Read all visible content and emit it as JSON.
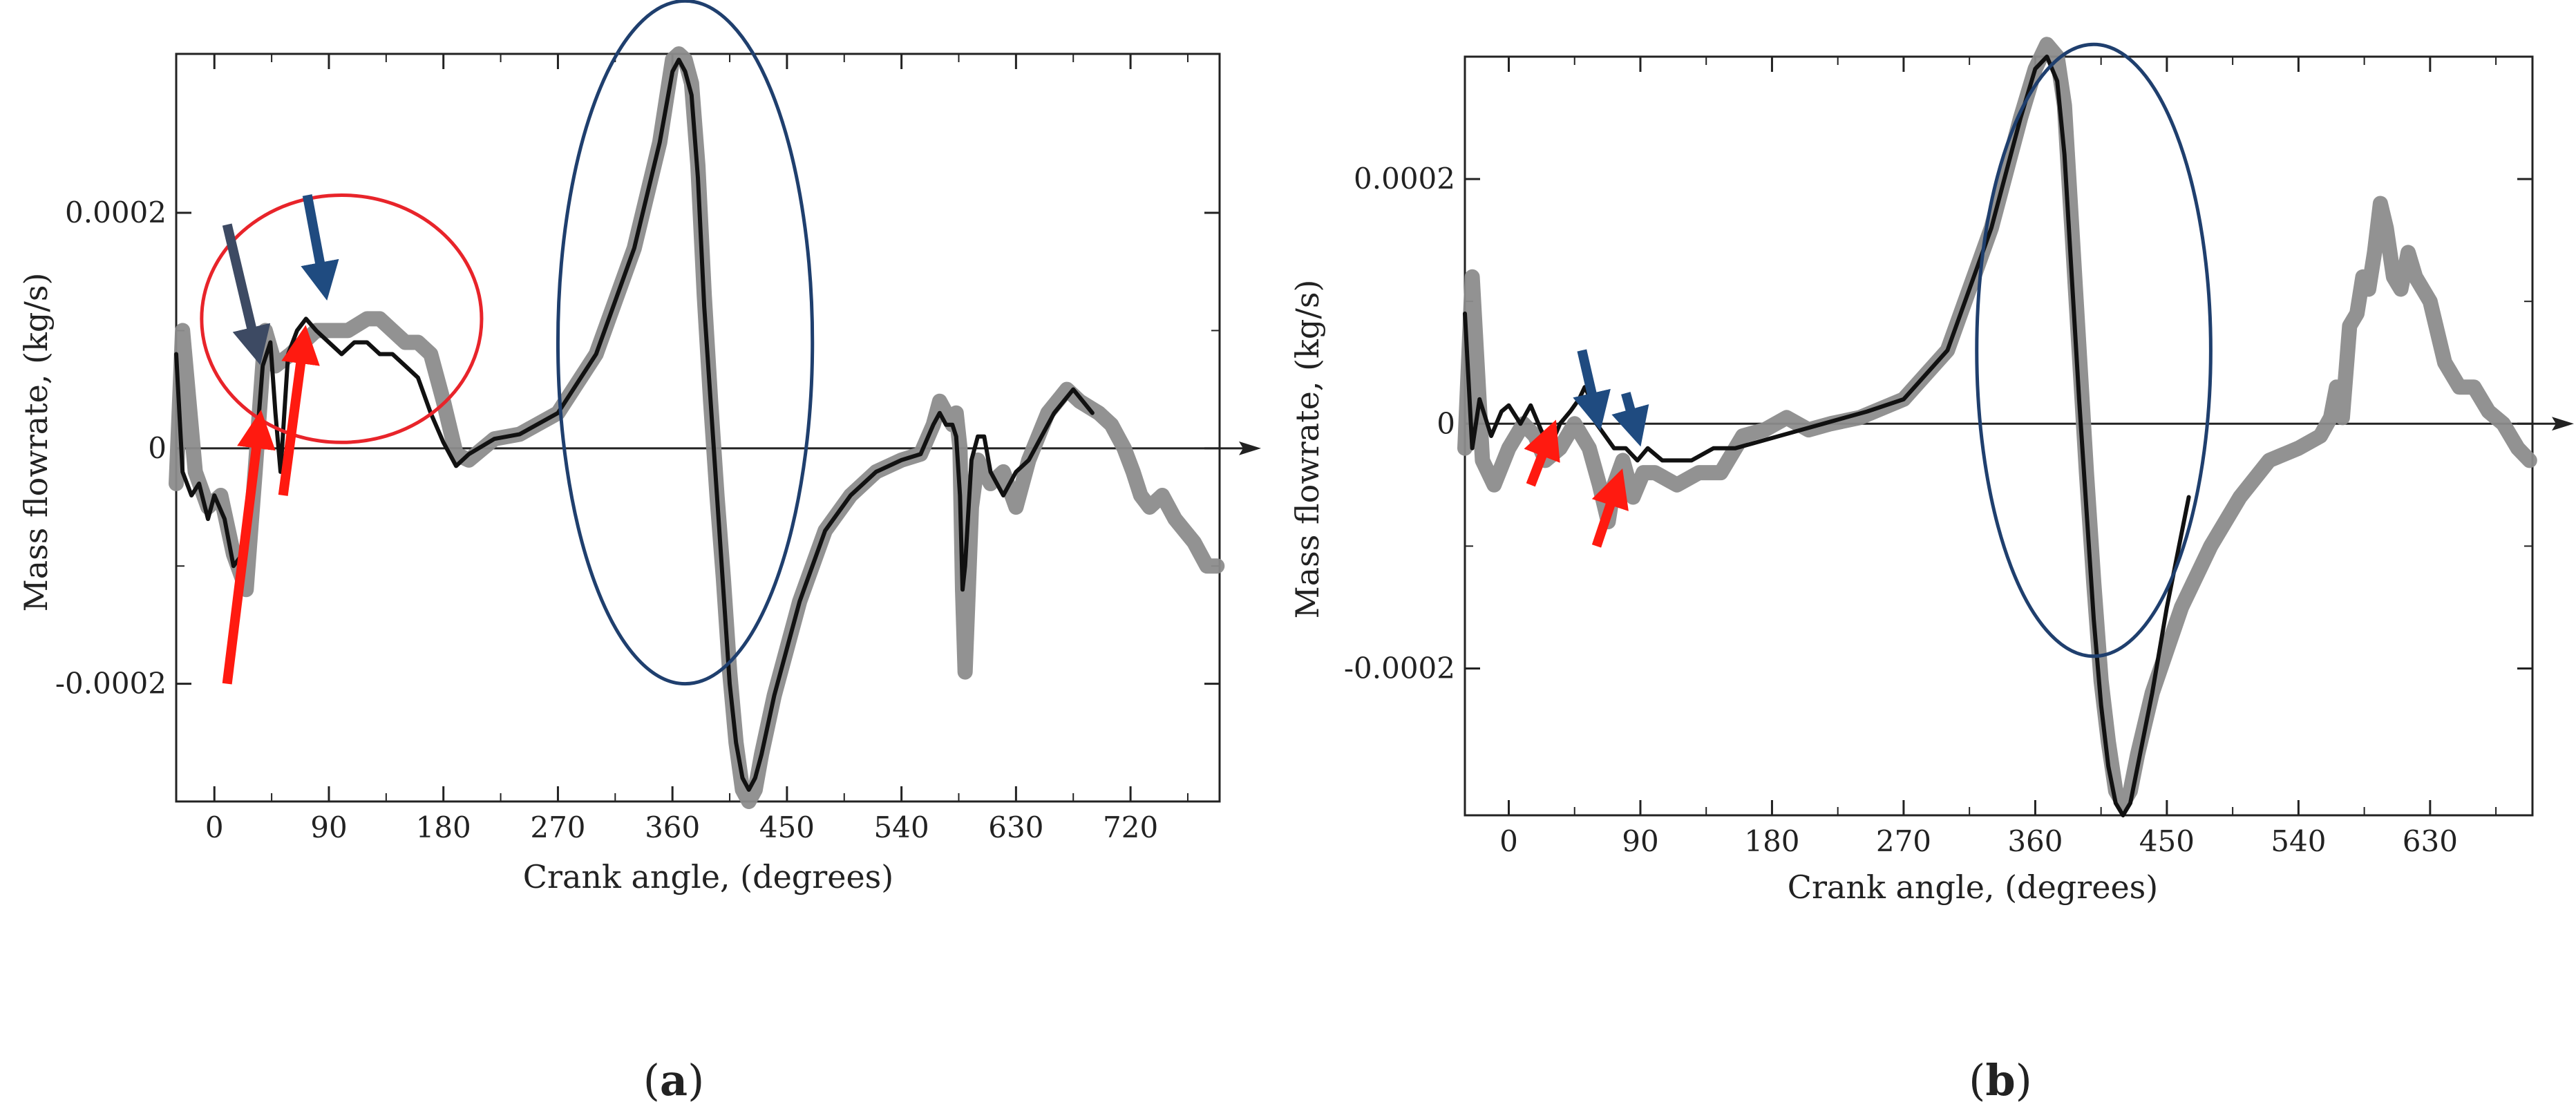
{
  "figure": {
    "panel_labels": [
      {
        "open": "(",
        "letter": "a",
        "close": ")"
      },
      {
        "open": "(",
        "letter": "b",
        "close": ")"
      }
    ]
  },
  "colors": {
    "series_gray": "#8c8c8c",
    "series_black": "#111111",
    "highlight_red": "#e8242a",
    "highlight_blue": "#1f3f6e",
    "arrow_red": "#ff1a10",
    "arrow_blue": "#1f4b80",
    "arrow_slate": "#3d4a63",
    "axes": "#222222"
  },
  "chart_data": [
    {
      "type": "line",
      "panel": "a",
      "title": "",
      "xlabel": "Crank angle, (degrees)",
      "ylabel": "Mass flowrate, (kg/s)",
      "xlim": [
        -30,
        790
      ],
      "ylim": [
        -0.0003,
        0.000335
      ],
      "xticks": [
        0,
        90,
        180,
        270,
        360,
        450,
        540,
        630,
        720
      ],
      "xtick_labels": [
        "0",
        "90",
        "180",
        "270",
        "360",
        "450",
        "540",
        "630",
        "720"
      ],
      "yticks": [
        0.0002,
        0,
        -0.0002
      ],
      "ytick_labels": [
        "0.0002",
        "0",
        "-0.0002"
      ],
      "zero_line": true,
      "series": [
        {
          "name": "gray (thick)",
          "color_key": "series_gray",
          "x": [
            -30,
            -25,
            -15,
            -5,
            5,
            15,
            25,
            32,
            40,
            48,
            60,
            70,
            80,
            90,
            105,
            120,
            130,
            140,
            150,
            160,
            170,
            180,
            190,
            200,
            220,
            240,
            270,
            300,
            330,
            350,
            360,
            365,
            370,
            375,
            380,
            385,
            390,
            395,
            400,
            405,
            410,
            415,
            420,
            425,
            430,
            440,
            460,
            480,
            500,
            520,
            540,
            555,
            565,
            570,
            575,
            580,
            583,
            586,
            588,
            590,
            595,
            600,
            610,
            620,
            630,
            640,
            655,
            670,
            680,
            695,
            705,
            710,
            715,
            722,
            728,
            735,
            745,
            755,
            770,
            780,
            788
          ],
          "y": [
            -3e-05,
            0.0001,
            -2e-05,
            -5e-05,
            -4e-05,
            -9e-05,
            -0.00012,
            -2e-05,
            0.0001,
            7e-05,
            8e-05,
            9e-05,
            0.0001,
            0.0001,
            0.0001,
            0.00011,
            0.00011,
            0.0001,
            9e-05,
            9e-05,
            8e-05,
            4e-05,
            -5e-06,
            -1e-05,
            8e-06,
            1.2e-05,
            3e-05,
            8e-05,
            0.00017,
            0.00026,
            0.00033,
            0.000335,
            0.00033,
            0.00031,
            0.00024,
            0.00013,
            4e-05,
            -4e-05,
            -0.00011,
            -0.00019,
            -0.00025,
            -0.00029,
            -0.0003,
            -0.00029,
            -0.00026,
            -0.00021,
            -0.00013,
            -7e-05,
            -4e-05,
            -2e-05,
            -1e-05,
            -5e-06,
            2e-05,
            4e-05,
            3e-05,
            2e-05,
            3e-05,
            0.0,
            -0.00012,
            -0.00019,
            -5e-05,
            -1e-05,
            -3e-05,
            -2e-05,
            -5e-05,
            -1e-05,
            3e-05,
            5e-05,
            4e-05,
            3e-05,
            2e-05,
            1e-05,
            0.0,
            -2e-05,
            -4e-05,
            -5e-05,
            -4e-05,
            -6e-05,
            -8e-05,
            -0.0001,
            -0.0001
          ]
        },
        {
          "name": "black (thin)",
          "color_key": "series_black",
          "x": [
            -30,
            -25,
            -18,
            -12,
            -5,
            0,
            8,
            15,
            22,
            30,
            38,
            44,
            48,
            52,
            58,
            65,
            72,
            80,
            90,
            100,
            110,
            120,
            130,
            140,
            150,
            160,
            170,
            180,
            190,
            200,
            220,
            240,
            270,
            300,
            330,
            350,
            360,
            365,
            370,
            375,
            380,
            385,
            390,
            395,
            400,
            405,
            410,
            415,
            420,
            425,
            430,
            440,
            460,
            480,
            500,
            520,
            540,
            555,
            565,
            570,
            575,
            580,
            583,
            586,
            588,
            590,
            595,
            600,
            605,
            610,
            620,
            630,
            640,
            660,
            675,
            690
          ],
          "y": [
            8e-05,
            -2e-05,
            -4e-05,
            -3e-05,
            -6e-05,
            -4e-05,
            -6e-05,
            -0.0001,
            -9e-05,
            -4e-05,
            7e-05,
            9e-05,
            3e-05,
            -2e-05,
            8e-05,
            0.0001,
            0.00011,
            0.0001,
            9e-05,
            8e-05,
            9e-05,
            9e-05,
            8e-05,
            8e-05,
            7e-05,
            6e-05,
            3e-05,
            5e-06,
            -1.5e-05,
            -5e-06,
            8e-06,
            1.2e-05,
            3e-05,
            8e-05,
            0.00017,
            0.00026,
            0.00032,
            0.00033,
            0.00032,
            0.0003,
            0.00023,
            0.00012,
            4e-05,
            -4e-05,
            -0.00012,
            -0.0002,
            -0.00025,
            -0.00028,
            -0.00029,
            -0.00028,
            -0.00026,
            -0.00021,
            -0.00013,
            -7e-05,
            -4e-05,
            -2e-05,
            -1e-05,
            -5e-06,
            2e-05,
            3e-05,
            2e-05,
            2e-05,
            1e-05,
            -4e-05,
            -0.00012,
            -0.0001,
            -1e-05,
            1e-05,
            1e-05,
            -2e-05,
            -4e-05,
            -2e-05,
            -1e-05,
            3e-05,
            5e-05,
            3e-05
          ]
        }
      ],
      "annotations": [
        {
          "type": "ellipse",
          "color_key": "highlight_red",
          "cx": 100,
          "cy": 0.00011,
          "rx": 110,
          "ry": 0.000105
        },
        {
          "type": "ellipse",
          "color_key": "highlight_blue",
          "cx": 370,
          "cy": 9e-05,
          "rx": 100,
          "ry": 0.00029
        },
        {
          "type": "arrow",
          "color_key": "arrow_red",
          "from": [
            10,
            -0.0002
          ],
          "to": [
            35,
            1.8e-05
          ]
        },
        {
          "type": "arrow",
          "color_key": "arrow_red",
          "from": [
            54,
            -4e-05
          ],
          "to": [
            70,
            9e-05
          ]
        },
        {
          "type": "arrow",
          "color_key": "arrow_slate",
          "from": [
            10,
            0.00019
          ],
          "to": [
            33,
            8.5e-05
          ]
        },
        {
          "type": "arrow",
          "color_key": "arrow_blue",
          "from": [
            73,
            0.000215
          ],
          "to": [
            86,
            0.00014
          ]
        }
      ]
    },
    {
      "type": "line",
      "panel": "b",
      "title": "",
      "xlabel": "Crank angle, (degrees)",
      "ylabel": "Mass flowrate, (kg/s)",
      "xlim": [
        -30,
        700
      ],
      "ylim": [
        -0.00032,
        0.0003
      ],
      "xticks": [
        0,
        90,
        180,
        270,
        360,
        450,
        540,
        630
      ],
      "xtick_labels": [
        "0",
        "90",
        "180",
        "270",
        "360",
        "450",
        "540",
        "630"
      ],
      "yticks": [
        0.0002,
        0,
        -0.0002
      ],
      "ytick_labels": [
        "0.0002",
        "0",
        "-0.0002"
      ],
      "zero_line": true,
      "series": [
        {
          "name": "gray (thick)",
          "color_key": "series_gray",
          "x": [
            -30,
            -25,
            -18,
            -10,
            0,
            10,
            18,
            25,
            35,
            45,
            55,
            62,
            68,
            72,
            78,
            85,
            92,
            100,
            115,
            130,
            145,
            160,
            175,
            190,
            205,
            220,
            240,
            270,
            300,
            330,
            350,
            360,
            368,
            375,
            380,
            385,
            390,
            395,
            400,
            405,
            410,
            415,
            420,
            425,
            430,
            440,
            460,
            480,
            500,
            520,
            540,
            555,
            562,
            566,
            570,
            575,
            580,
            584,
            588,
            592,
            596,
            600,
            605,
            610,
            615,
            620,
            630,
            640,
            650,
            660,
            670,
            680,
            690,
            698
          ],
          "y": [
            -2e-05,
            0.00012,
            -3e-05,
            -5e-05,
            -2e-05,
            0.0,
            -1e-05,
            -3e-05,
            -2e-05,
            0.0,
            -2e-05,
            -5e-05,
            -8e-05,
            -5e-05,
            -3e-05,
            -6e-05,
            -4e-05,
            -4e-05,
            -5e-05,
            -4e-05,
            -4e-05,
            -1e-05,
            -5e-06,
            5e-06,
            -5e-06,
            0.0,
            5e-06,
            2e-05,
            6e-05,
            0.00016,
            0.00025,
            0.00029,
            0.00031,
            0.0003,
            0.00026,
            0.00016,
            6e-05,
            -4e-05,
            -0.00013,
            -0.00021,
            -0.00026,
            -0.0003,
            -0.00031,
            -0.0003,
            -0.00027,
            -0.00022,
            -0.00015,
            -0.0001,
            -6e-05,
            -3e-05,
            -2e-05,
            -1e-05,
            5e-06,
            3e-05,
            5e-06,
            8e-05,
            9e-05,
            0.00012,
            0.00011,
            0.00014,
            0.00018,
            0.00016,
            0.00012,
            0.00011,
            0.00014,
            0.00012,
            0.0001,
            5e-05,
            3e-05,
            3e-05,
            1e-05,
            0.0,
            -2e-05,
            -3e-05
          ]
        },
        {
          "name": "black (thin)",
          "color_key": "series_black",
          "x": [
            -30,
            -25,
            -20,
            -12,
            -5,
            0,
            8,
            15,
            22,
            28,
            35,
            42,
            48,
            52,
            56,
            60,
            66,
            72,
            80,
            88,
            95,
            105,
            115,
            125,
            140,
            155,
            170,
            185,
            200,
            215,
            230,
            245,
            270,
            300,
            330,
            350,
            360,
            368,
            375,
            380,
            385,
            390,
            395,
            400,
            405,
            410,
            415,
            420,
            425,
            430,
            440,
            450,
            465
          ],
          "y": [
            9e-05,
            -2e-05,
            2e-05,
            -1e-05,
            1e-05,
            1.5e-05,
            0.0,
            1.5e-05,
            -5e-06,
            -2e-05,
            0.0,
            1e-05,
            2e-05,
            3e-05,
            2e-05,
            0.0,
            -1e-05,
            -2e-05,
            -2e-05,
            -3e-05,
            -2e-05,
            -3e-05,
            -3e-05,
            -3e-05,
            -2e-05,
            -2e-05,
            -1.5e-05,
            -1e-05,
            -5e-06,
            0.0,
            5e-06,
            1e-05,
            2e-05,
            6e-05,
            0.00016,
            0.00025,
            0.00029,
            0.0003,
            0.00028,
            0.00022,
            0.00012,
            2e-05,
            -7e-05,
            -0.00016,
            -0.00023,
            -0.00028,
            -0.00031,
            -0.00032,
            -0.00031,
            -0.00028,
            -0.00022,
            -0.00015,
            -6e-05
          ]
        }
      ],
      "annotations": [
        {
          "type": "ellipse",
          "color_key": "highlight_blue",
          "cx": 400,
          "cy": 6e-05,
          "rx": 80,
          "ry": 0.00025
        },
        {
          "type": "arrow",
          "color_key": "arrow_red",
          "from": [
            15,
            -5e-05
          ],
          "to": [
            28,
            -1e-05
          ]
        },
        {
          "type": "arrow",
          "color_key": "arrow_red",
          "from": [
            60,
            -0.0001
          ],
          "to": [
            74,
            -5e-05
          ]
        },
        {
          "type": "arrow",
          "color_key": "arrow_blue",
          "from": [
            50,
            6e-05
          ],
          "to": [
            60,
            8e-06
          ]
        },
        {
          "type": "arrow",
          "color_key": "arrow_blue",
          "from": [
            80,
            2.5e-05
          ],
          "to": [
            87,
            -5e-06
          ]
        }
      ]
    }
  ]
}
